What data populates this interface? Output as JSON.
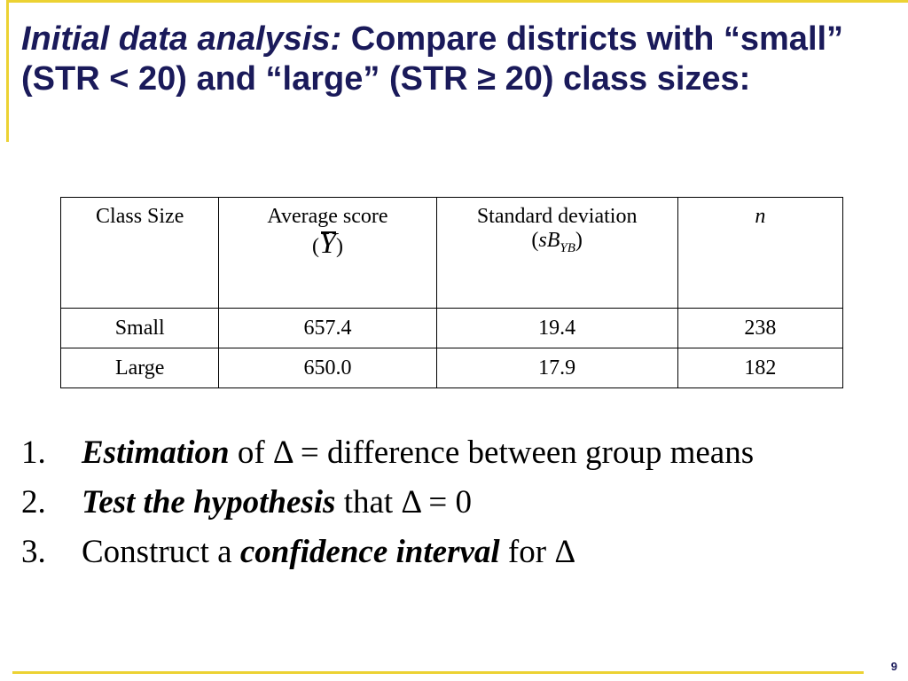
{
  "slide": {
    "title_lead": "Initial data analysis:",
    "title_rest": " Compare districts with “small” (STR < 20) and “large” (STR ≥ 20) class sizes:",
    "page_number": "9",
    "accent_color": "#ecd233",
    "title_color": "#1a1a5a"
  },
  "table": {
    "headers": {
      "class_size": "Class Size",
      "average_score": "Average score",
      "average_symbol": "Y",
      "std_dev": "Standard deviation",
      "std_symbol": "sB",
      "std_sub": "YB",
      "n": "n"
    },
    "rows": [
      {
        "class_size": "Small",
        "average": "657.4",
        "sd": "19.4",
        "n": "238"
      },
      {
        "class_size": "Large",
        "average": "650.0",
        "sd": "17.9",
        "n": "182"
      }
    ]
  },
  "points": [
    {
      "num": "1.",
      "bold": "Estimation",
      "text": " of Δ = difference between group means"
    },
    {
      "num": "2.",
      "bold": "Test the hypothesis",
      "text": " that  Δ = 0"
    },
    {
      "num": "3.",
      "pre": "Construct a ",
      "bold": "confidence interval",
      "text": " for Δ"
    }
  ]
}
